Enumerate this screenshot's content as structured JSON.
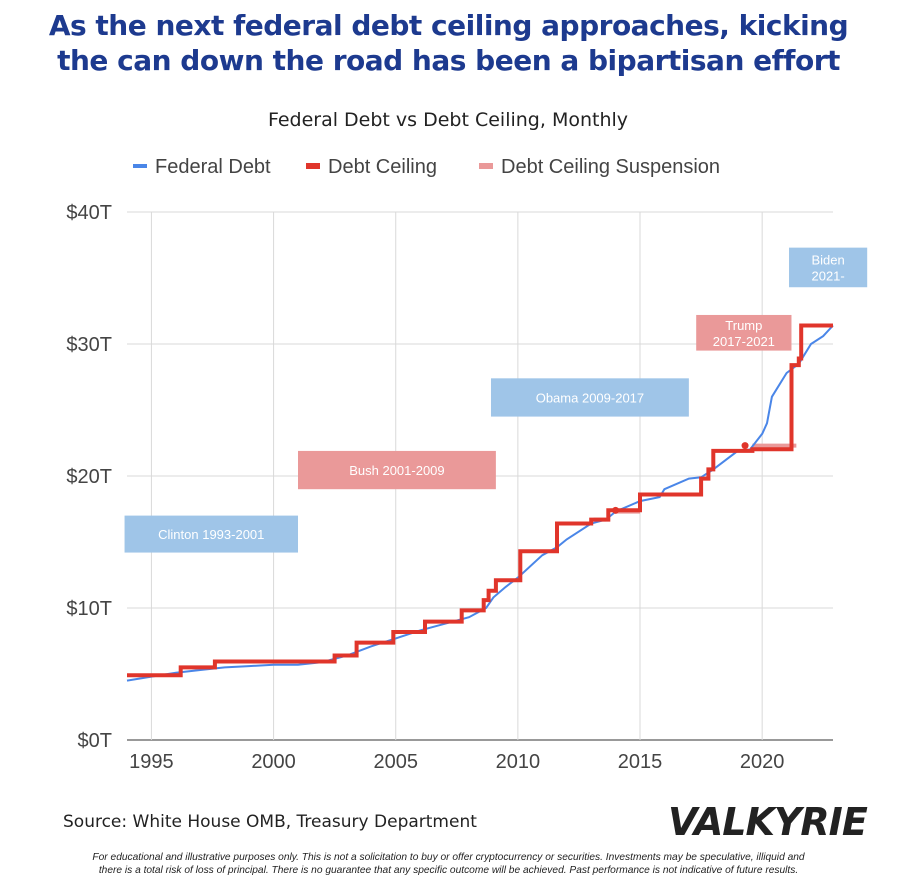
{
  "headline": {
    "line1": "As the next federal debt ceiling approaches, kicking",
    "line2": "the can down the road has been a bipartisan effort"
  },
  "source": "Source: White House OMB, Treasury Department",
  "logo": "VALKYRIE",
  "disclaimer": {
    "line1": "For educational and illustrative purposes only. This is not a solicitation to buy or offer cryptocurrency or securities. Investments may be speculative, illiquid and",
    "line2": "there is a total risk of loss of principal. There is no guarantee that any specific outcome will be achieved. Past performance is not indicative of future results."
  },
  "colors": {
    "headline": "#1d3a8f",
    "federal_debt": "#4a86e8",
    "debt_ceiling": "#e0352b",
    "suspension": "#ea9999",
    "democrat_box": "#9fc5e8",
    "republican_box": "#ea9999",
    "grid": "#d9d9d9"
  },
  "chart_data": {
    "type": "line",
    "title": "Federal Debt vs Debt Ceiling, Monthly",
    "xlabel": "",
    "ylabel": "",
    "xlim": [
      1994,
      2022.9
    ],
    "ylim": [
      0,
      40
    ],
    "x_ticks": [
      1995,
      2000,
      2005,
      2010,
      2015,
      2020
    ],
    "x_tick_labels": [
      "1995",
      "2000",
      "2005",
      "2010",
      "2015",
      "2020"
    ],
    "y_ticks": [
      0,
      10,
      20,
      30,
      40
    ],
    "y_tick_labels": [
      "$0T",
      "$10T",
      "$20T",
      "$30T",
      "$40T"
    ],
    "unit": "trillions USD",
    "grid": true,
    "legend_position": "top",
    "series": [
      {
        "name": "Federal Debt",
        "style": "line",
        "points": [
          [
            1994.0,
            4.5
          ],
          [
            1995.0,
            4.8
          ],
          [
            1996.0,
            5.1
          ],
          [
            1997.0,
            5.3
          ],
          [
            1998.0,
            5.5
          ],
          [
            1999.0,
            5.6
          ],
          [
            2000.0,
            5.7
          ],
          [
            2001.0,
            5.7
          ],
          [
            2002.0,
            5.9
          ],
          [
            2003.0,
            6.4
          ],
          [
            2004.0,
            7.1
          ],
          [
            2005.0,
            7.7
          ],
          [
            2006.0,
            8.3
          ],
          [
            2007.0,
            8.8
          ],
          [
            2008.0,
            9.3
          ],
          [
            2008.7,
            10.0
          ],
          [
            2009.0,
            10.8
          ],
          [
            2009.5,
            11.6
          ],
          [
            2010.0,
            12.3
          ],
          [
            2011.0,
            14.0
          ],
          [
            2011.6,
            14.6
          ],
          [
            2012.0,
            15.2
          ],
          [
            2013.0,
            16.4
          ],
          [
            2013.6,
            16.7
          ],
          [
            2014.0,
            17.3
          ],
          [
            2015.0,
            18.1
          ],
          [
            2015.8,
            18.4
          ],
          [
            2016.0,
            19.0
          ],
          [
            2017.0,
            19.8
          ],
          [
            2017.5,
            19.9
          ],
          [
            2018.0,
            20.5
          ],
          [
            2019.0,
            21.9
          ],
          [
            2019.5,
            22.0
          ],
          [
            2020.0,
            23.2
          ],
          [
            2020.2,
            24.0
          ],
          [
            2020.4,
            26.0
          ],
          [
            2021.0,
            27.8
          ],
          [
            2021.5,
            28.5
          ],
          [
            2022.0,
            30.0
          ],
          [
            2022.5,
            30.6
          ],
          [
            2022.9,
            31.4
          ]
        ]
      },
      {
        "name": "Debt Ceiling",
        "style": "step",
        "points": [
          [
            1994.0,
            4.9
          ],
          [
            1996.2,
            5.5
          ],
          [
            1997.6,
            5.95
          ],
          [
            2002.5,
            6.4
          ],
          [
            2003.4,
            7.38
          ],
          [
            2004.9,
            8.18
          ],
          [
            2006.2,
            8.97
          ],
          [
            2007.7,
            9.82
          ],
          [
            2008.6,
            10.6
          ],
          [
            2008.8,
            11.3
          ],
          [
            2009.1,
            12.1
          ],
          [
            2010.1,
            14.3
          ],
          [
            2011.6,
            16.4
          ],
          [
            2013.0,
            16.7
          ],
          [
            2013.7,
            17.4
          ],
          [
            2015.0,
            18.6
          ],
          [
            2017.5,
            19.8
          ],
          [
            2017.8,
            20.5
          ],
          [
            2018.0,
            21.9
          ],
          [
            2019.6,
            22.03
          ],
          [
            2021.2,
            28.4
          ],
          [
            2021.5,
            28.9
          ],
          [
            2021.6,
            31.4
          ],
          [
            2022.9,
            31.4
          ]
        ]
      },
      {
        "name": "Debt Ceiling Suspension",
        "style": "segments",
        "segments": [
          [
            2013.1,
            2013.6,
            16.7
          ],
          [
            2014.0,
            2015.0,
            17.3
          ],
          [
            2015.8,
            2017.2,
            18.6
          ],
          [
            2019.6,
            2021.4,
            22.3
          ]
        ]
      }
    ],
    "annotations": [
      {
        "label": "Clinton 1993-2001",
        "party": "democrat",
        "x_from": 1993.9,
        "x_to": 2001.0,
        "y_from": 14.2,
        "y_to": 17.0
      },
      {
        "label": "Bush 2001-2009",
        "party": "republican",
        "x_from": 2001.0,
        "x_to": 2009.1,
        "y_from": 19.0,
        "y_to": 21.9
      },
      {
        "label": "Obama 2009-2017",
        "party": "democrat",
        "x_from": 2008.9,
        "x_to": 2017.0,
        "y_from": 24.5,
        "y_to": 27.4
      },
      {
        "label": "Trump 2017-2021",
        "party": "republican",
        "x_from": 2017.3,
        "x_to": 2021.2,
        "y_from": 29.5,
        "y_to": 32.2
      },
      {
        "label": "Biden 2021-",
        "party": "democrat",
        "x_from": 2021.1,
        "x_to": 2024.3,
        "y_from": 34.3,
        "y_to": 37.3
      }
    ]
  }
}
